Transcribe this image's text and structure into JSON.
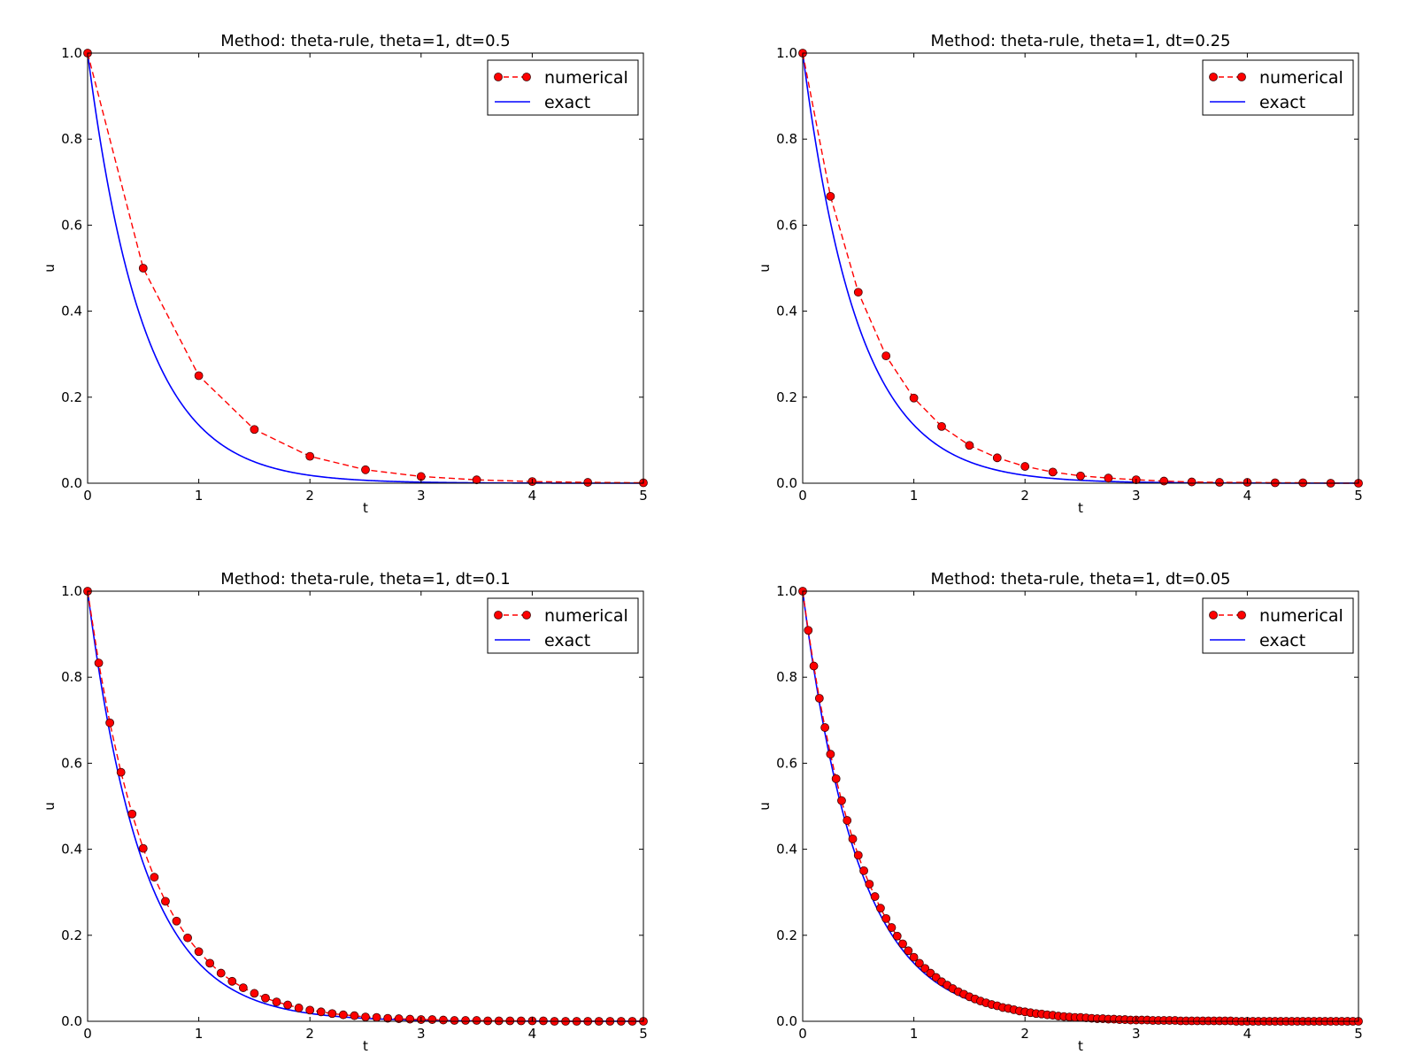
{
  "figure": {
    "background": "#ffffff"
  },
  "style": {
    "numerical_color": "#ff0000",
    "marker_edge_color": "#400000",
    "exact_color": "#0000ff",
    "axis_color": "#000000"
  },
  "chart_data": [
    {
      "type": "line",
      "title": "Method: theta-rule, theta=1, dt=0.5",
      "xlabel": "t",
      "ylabel": "u",
      "xlim": [
        0,
        5
      ],
      "ylim": [
        0,
        1
      ],
      "xticks": [
        "0",
        "1",
        "2",
        "3",
        "4",
        "5"
      ],
      "yticks": [
        "0.0",
        "0.2",
        "0.4",
        "0.6",
        "0.8",
        "1.0"
      ],
      "legend_position": "top-right",
      "grid": false,
      "dt": 0.5,
      "series": [
        {
          "name": "numerical",
          "style": "red dashed line with circle markers",
          "x": [
            0,
            0.5,
            1,
            1.5,
            2,
            2.5,
            3,
            3.5,
            4,
            4.5,
            5
          ],
          "y": [
            1.0,
            0.5,
            0.25,
            0.125,
            0.0625,
            0.03125,
            0.015625,
            0.0078125,
            0.00390625,
            0.001953125,
            0.0009765625
          ]
        },
        {
          "name": "exact",
          "style": "blue solid line",
          "function": "u = exp(-2t)"
        }
      ]
    },
    {
      "type": "line",
      "title": "Method: theta-rule, theta=1, dt=0.25",
      "xlabel": "t",
      "ylabel": "u",
      "xlim": [
        0,
        5
      ],
      "ylim": [
        0,
        1
      ],
      "xticks": [
        "0",
        "1",
        "2",
        "3",
        "4",
        "5"
      ],
      "yticks": [
        "0.0",
        "0.2",
        "0.4",
        "0.6",
        "0.8",
        "1.0"
      ],
      "legend_position": "top-right",
      "grid": false,
      "dt": 0.25,
      "series": [
        {
          "name": "numerical",
          "style": "red dashed line with circle markers",
          "x": [
            0,
            0.25,
            0.5,
            0.75,
            1,
            1.25,
            1.5,
            1.75,
            2,
            2.25,
            2.5,
            2.75,
            3,
            3.25,
            3.5,
            3.75,
            4,
            4.25,
            4.5,
            4.75,
            5
          ],
          "y": [
            1.0,
            0.667,
            0.444,
            0.296,
            0.198,
            0.132,
            0.088,
            0.059,
            0.039,
            0.026,
            0.017,
            0.012,
            0.008,
            0.005,
            0.003,
            0.002,
            0.002,
            0.001,
            0.001,
            0.0,
            0.0
          ]
        },
        {
          "name": "exact",
          "style": "blue solid line",
          "function": "u = exp(-2t)"
        }
      ]
    },
    {
      "type": "line",
      "title": "Method: theta-rule, theta=1, dt=0.1",
      "xlabel": "t",
      "ylabel": "u",
      "xlim": [
        0,
        5
      ],
      "ylim": [
        0,
        1
      ],
      "xticks": [
        "0",
        "1",
        "2",
        "3",
        "4",
        "5"
      ],
      "yticks": [
        "0.0",
        "0.2",
        "0.4",
        "0.6",
        "0.8",
        "1.0"
      ],
      "legend_position": "top-right",
      "grid": false,
      "dt": 0.1,
      "series": [
        {
          "name": "numerical",
          "style": "red dashed line with circle markers",
          "x": [
            0,
            0.1,
            0.2,
            0.3,
            0.4,
            0.5,
            0.6,
            0.7,
            0.8,
            0.9,
            1.0,
            1.1,
            1.2,
            1.3,
            1.4,
            1.5,
            1.6,
            1.7,
            1.8,
            1.9,
            2.0,
            2.1,
            2.2,
            2.3,
            2.4,
            2.5,
            2.6,
            2.7,
            2.8,
            2.9,
            3.0,
            3.1,
            3.2,
            3.3,
            3.4,
            3.5,
            3.6,
            3.7,
            3.8,
            3.9,
            4.0,
            4.1,
            4.2,
            4.3,
            4.4,
            4.5,
            4.6,
            4.7,
            4.8,
            4.9,
            5.0
          ],
          "y": [
            1.0,
            0.833,
            0.694,
            0.579,
            0.482,
            0.402,
            0.335,
            0.279,
            0.233,
            0.194,
            0.162,
            0.135,
            0.112,
            0.093,
            0.078,
            0.065,
            0.054,
            0.045,
            0.038,
            0.031,
            0.026,
            0.022,
            0.018,
            0.015,
            0.013,
            0.01,
            0.009,
            0.007,
            0.006,
            0.005,
            0.004,
            0.004,
            0.003,
            0.002,
            0.002,
            0.002,
            0.001,
            0.001,
            0.001,
            0.001,
            0.001,
            0.001,
            0.0,
            0.0,
            0.0,
            0.0,
            0.0,
            0.0,
            0.0,
            0.0,
            0.0
          ]
        },
        {
          "name": "exact",
          "style": "blue solid line",
          "function": "u = exp(-2t)"
        }
      ]
    },
    {
      "type": "line",
      "title": "Method: theta-rule, theta=1, dt=0.05",
      "xlabel": "t",
      "ylabel": "u",
      "xlim": [
        0,
        5
      ],
      "ylim": [
        0,
        1
      ],
      "xticks": [
        "0",
        "1",
        "2",
        "3",
        "4",
        "5"
      ],
      "yticks": [
        "0.0",
        "0.2",
        "0.4",
        "0.6",
        "0.8",
        "1.0"
      ],
      "legend_position": "top-right",
      "grid": false,
      "dt": 0.05,
      "series": [
        {
          "name": "numerical",
          "style": "red dashed line with circle markers",
          "x": [
            0,
            0.05,
            0.1,
            0.15,
            0.2,
            0.25,
            0.3,
            0.35,
            0.4,
            0.45,
            0.5,
            0.55,
            0.6,
            0.65,
            0.7,
            0.75,
            0.8,
            0.85,
            0.9,
            0.95,
            1.0,
            1.05,
            1.1,
            1.15,
            1.2,
            1.25,
            1.3,
            1.35,
            1.4,
            1.45,
            1.5,
            1.55,
            1.6,
            1.65,
            1.7,
            1.75,
            1.8,
            1.85,
            1.9,
            1.95,
            2.0,
            2.05,
            2.1,
            2.15,
            2.2,
            2.25,
            2.3,
            2.35,
            2.4,
            2.45,
            2.5,
            2.55,
            2.6,
            2.65,
            2.7,
            2.75,
            2.8,
            2.85,
            2.9,
            2.95,
            3.0,
            3.05,
            3.1,
            3.15,
            3.2,
            3.25,
            3.3,
            3.35,
            3.4,
            3.45,
            3.5,
            3.55,
            3.6,
            3.65,
            3.7,
            3.75,
            3.8,
            3.85,
            3.9,
            3.95,
            4.0,
            4.05,
            4.1,
            4.15,
            4.2,
            4.25,
            4.3,
            4.35,
            4.4,
            4.45,
            4.5,
            4.55,
            4.6,
            4.65,
            4.7,
            4.75,
            4.8,
            4.85,
            4.9,
            4.95,
            5.0
          ],
          "y": [
            1.0,
            0.909,
            0.826,
            0.751,
            0.683,
            0.621,
            0.564,
            0.513,
            0.467,
            0.424,
            0.386,
            0.35,
            0.319,
            0.29,
            0.263,
            0.239,
            0.218,
            0.198,
            0.18,
            0.164,
            0.149,
            0.135,
            0.123,
            0.112,
            0.102,
            0.092,
            0.084,
            0.076,
            0.069,
            0.063,
            0.057,
            0.052,
            0.047,
            0.043,
            0.039,
            0.036,
            0.032,
            0.03,
            0.027,
            0.024,
            0.022,
            0.02,
            0.018,
            0.017,
            0.015,
            0.014,
            0.012,
            0.011,
            0.01,
            0.009,
            0.009,
            0.008,
            0.007,
            0.006,
            0.006,
            0.005,
            0.005,
            0.004,
            0.004,
            0.003,
            0.003,
            0.003,
            0.003,
            0.002,
            0.002,
            0.002,
            0.002,
            0.002,
            0.001,
            0.001,
            0.001,
            0.001,
            0.001,
            0.001,
            0.001,
            0.001,
            0.001,
            0.001,
            0.0,
            0.0,
            0.0,
            0.0,
            0.0,
            0.0,
            0.0,
            0.0,
            0.0,
            0.0,
            0.0,
            0.0,
            0.0,
            0.0,
            0.0,
            0.0,
            0.0,
            0.0,
            0.0,
            0.0,
            0.0,
            0.0,
            0.0
          ]
        },
        {
          "name": "exact",
          "style": "blue solid line",
          "function": "u = exp(-2t)"
        }
      ]
    }
  ]
}
